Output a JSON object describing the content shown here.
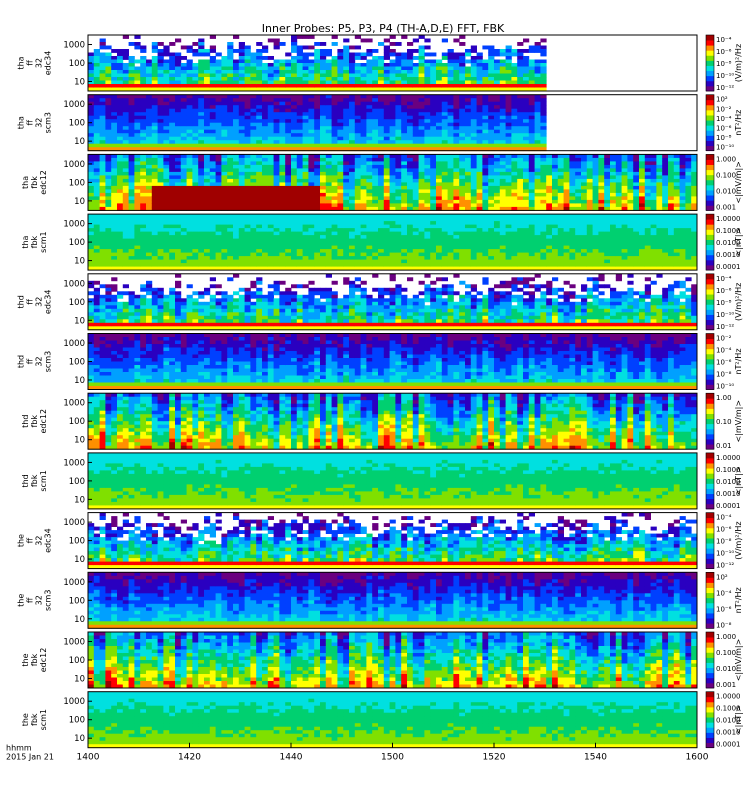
{
  "chart_data": {
    "type": "heatmap",
    "title": "Inner Probes: P5, P3, P4 (TH-A,D,E) FFT, FBK",
    "x_axis": {
      "range": [
        "1400",
        "1600"
      ],
      "tick_labels": [
        "1400",
        "1420",
        "1440",
        "1500",
        "1520",
        "1540",
        "1600"
      ],
      "label_lines": [
        "hhmm",
        "2015 Jan 21"
      ]
    },
    "y_tick_labels": [
      "1000",
      "100",
      "10"
    ],
    "panels": [
      {
        "id": "tha-ff-edc34",
        "label_lines": [
          "tha",
          "ff",
          "32",
          "edc34"
        ],
        "kind": "ff_e",
        "data_end_fraction": 0.757,
        "cbar_ticks": [
          "10⁻⁴",
          "10⁻⁶",
          "10⁻⁸",
          "10⁻¹⁰",
          "10⁻¹²"
        ],
        "cbar_title": "(V/m)²/Hz"
      },
      {
        "id": "tha-ff-scm3",
        "label_lines": [
          "tha",
          "ff",
          "32",
          "scm3"
        ],
        "kind": "ff_b",
        "data_end_fraction": 0.757,
        "cbar_ticks": [
          "10²",
          "10⁻²",
          "10⁻⁴",
          "10⁻⁶",
          "10⁻⁸",
          "10⁻¹⁰"
        ],
        "cbar_title": "nT²/Hz"
      },
      {
        "id": "tha-fbk-edc12",
        "label_lines": [
          "tha",
          "fbk",
          "edc12"
        ],
        "kind": "fbk_e",
        "data_end_fraction": 1.0,
        "cbar_ticks": [
          "1.000",
          "0.100",
          "0.010",
          "0.001"
        ],
        "cbar_title": "<|mV/m|>"
      },
      {
        "id": "tha-fbk-scm1",
        "label_lines": [
          "tha",
          "fbk",
          "scm1"
        ],
        "kind": "fbk_b",
        "data_end_fraction": 1.0,
        "cbar_ticks": [
          "1.0000",
          "0.1000",
          "0.0100",
          "0.0010",
          "0.0001"
        ],
        "cbar_title": "<|nT|>"
      },
      {
        "id": "thd-ff-edc34",
        "label_lines": [
          "thd",
          "ff",
          "32",
          "edc34"
        ],
        "kind": "ff_e",
        "data_end_fraction": 1.0,
        "cbar_ticks": [
          "10⁻⁴",
          "10⁻⁶",
          "10⁻⁸",
          "10⁻¹⁰",
          "10⁻¹²"
        ],
        "cbar_title": "(V/m)²/Hz"
      },
      {
        "id": "thd-ff-scm3",
        "label_lines": [
          "thd",
          "ff",
          "32",
          "scm3"
        ],
        "kind": "ff_b",
        "data_end_fraction": 1.0,
        "cbar_ticks": [
          "10⁻²",
          "10⁻⁴",
          "10⁻⁶",
          "10⁻⁸",
          "10⁻¹⁰"
        ],
        "cbar_title": "nT²/Hz"
      },
      {
        "id": "thd-fbk-edc12",
        "label_lines": [
          "thd",
          "fbk",
          "edc12"
        ],
        "kind": "fbk_e",
        "data_end_fraction": 1.0,
        "cbar_ticks": [
          "1.00",
          "0.10",
          "0.01"
        ],
        "cbar_title": "<|mV/m|>"
      },
      {
        "id": "thd-fbk-scm1",
        "label_lines": [
          "thd",
          "fbk",
          "scm1"
        ],
        "kind": "fbk_b",
        "data_end_fraction": 1.0,
        "cbar_ticks": [
          "1.0000",
          "0.1000",
          "0.0100",
          "0.0010",
          "0.0001"
        ],
        "cbar_title": "<|nT|>"
      },
      {
        "id": "the-ff-edc34",
        "label_lines": [
          "the",
          "ff",
          "32",
          "edc34"
        ],
        "kind": "ff_e",
        "data_end_fraction": 1.0,
        "cbar_ticks": [
          "10⁻⁴",
          "10⁻⁶",
          "10⁻⁸",
          "10⁻¹⁰",
          "10⁻¹²"
        ],
        "cbar_title": "(V/m)²/Hz"
      },
      {
        "id": "the-ff-scm3",
        "label_lines": [
          "the",
          "ff",
          "32",
          "scm3"
        ],
        "kind": "ff_b",
        "data_end_fraction": 1.0,
        "cbar_ticks": [
          "10²",
          "10⁻⁴",
          "10⁻⁶",
          "10⁻⁸"
        ],
        "cbar_title": "nT²/Hz"
      },
      {
        "id": "the-fbk-edc12",
        "label_lines": [
          "the",
          "fbk",
          "edc12"
        ],
        "kind": "fbk_e",
        "data_end_fraction": 1.0,
        "cbar_ticks": [
          "1.000",
          "0.100",
          "0.010",
          "0.001"
        ],
        "cbar_title": "<|mV/m|>"
      },
      {
        "id": "the-fbk-scm1",
        "label_lines": [
          "the",
          "fbk",
          "scm1"
        ],
        "kind": "fbk_b",
        "data_end_fraction": 1.0,
        "cbar_ticks": [
          "1.0000",
          "0.1000",
          "0.0100",
          "0.0010",
          "0.0001"
        ],
        "cbar_title": "<|nT|>"
      }
    ],
    "colormap": [
      "#6a0080",
      "#2a00c0",
      "#0040ff",
      "#00a0ff",
      "#00e0e0",
      "#00d070",
      "#80e000",
      "#ffff00",
      "#ff9000",
      "#ff0000",
      "#a00000"
    ]
  }
}
